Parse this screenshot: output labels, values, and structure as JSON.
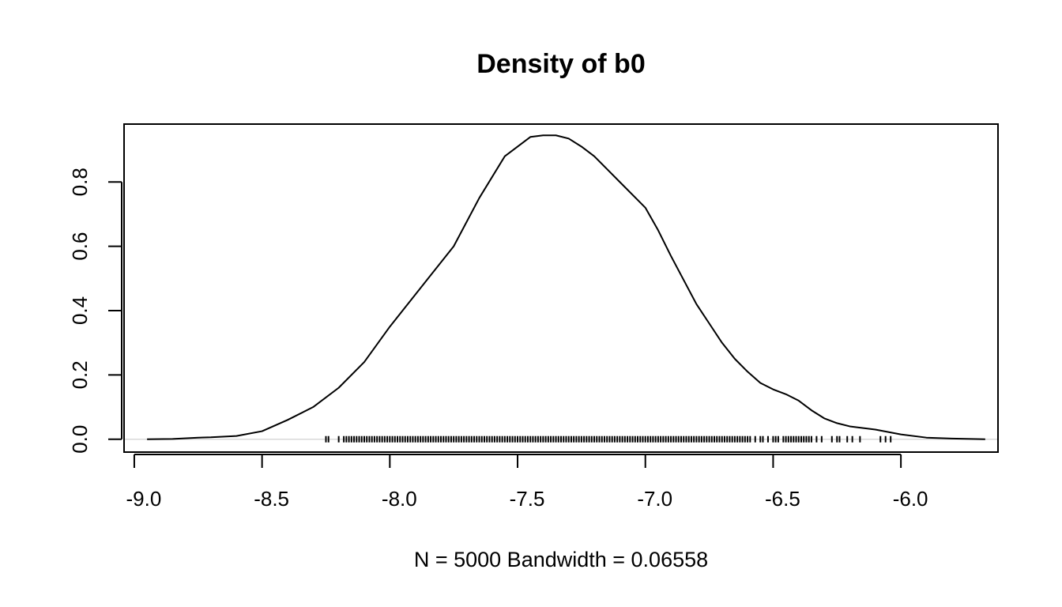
{
  "chart_data": {
    "type": "line",
    "title": "Density of b0",
    "xlabel": "N = 5000   Bandwidth = 0.06558",
    "ylabel": "",
    "xlim": [
      -9.04,
      -5.62
    ],
    "ylim": [
      -0.04,
      0.98
    ],
    "x_ticks": [
      -9.0,
      -8.5,
      -8.0,
      -7.5,
      -7.0,
      -6.5,
      -6.0
    ],
    "x_tick_labels": [
      "-9.0",
      "-8.5",
      "-8.0",
      "-7.5",
      "-7.0",
      "-6.5",
      "-6.0"
    ],
    "y_ticks": [
      0.0,
      0.2,
      0.4,
      0.6,
      0.8
    ],
    "y_tick_labels": [
      "0.0",
      "0.2",
      "0.4",
      "0.6",
      "0.8"
    ],
    "grid": false,
    "baseline": 0.0,
    "series": [
      {
        "x": [
          -8.95,
          -8.85,
          -8.75,
          -8.7,
          -8.6,
          -8.5,
          -8.4,
          -8.3,
          -8.2,
          -8.1,
          -8.0,
          -7.9,
          -7.85,
          -7.75,
          -7.65,
          -7.55,
          -7.45,
          -7.4,
          -7.35,
          -7.3,
          -7.25,
          -7.2,
          -7.15,
          -7.1,
          -7.0,
          -6.95,
          -6.9,
          -6.8,
          -6.75,
          -6.7,
          -6.65,
          -6.6,
          -6.55,
          -6.5,
          -6.45,
          -6.4,
          -6.35,
          -6.3,
          -6.25,
          -6.2,
          -6.1,
          -6.0,
          -5.9,
          -5.8,
          -5.67
        ],
        "y": [
          0.0,
          0.001,
          0.005,
          0.006,
          0.01,
          0.025,
          0.06,
          0.1,
          0.16,
          0.24,
          0.35,
          0.45,
          0.5,
          0.6,
          0.75,
          0.88,
          0.94,
          0.945,
          0.945,
          0.935,
          0.91,
          0.88,
          0.84,
          0.8,
          0.72,
          0.65,
          0.57,
          0.42,
          0.36,
          0.3,
          0.25,
          0.21,
          0.175,
          0.155,
          0.14,
          0.12,
          0.09,
          0.065,
          0.05,
          0.04,
          0.03,
          0.015,
          0.005,
          0.002,
          0.0
        ]
      }
    ],
    "rug": [
      -8.25,
      -8.24,
      -8.2,
      -8.18,
      -8.17,
      -8.16,
      -8.15,
      -8.14,
      -8.13,
      -8.12,
      -8.11,
      -8.1,
      -8.09,
      -8.08,
      -8.07,
      -8.06,
      -8.05,
      -8.04,
      -8.03,
      -8.02,
      -8.01,
      -8.0,
      -7.99,
      -7.98,
      -7.97,
      -7.96,
      -7.95,
      -7.94,
      -7.93,
      -7.92,
      -7.91,
      -7.9,
      -7.89,
      -7.88,
      -7.87,
      -7.86,
      -7.85,
      -7.84,
      -7.83,
      -7.82,
      -7.81,
      -7.8,
      -7.79,
      -7.78,
      -7.77,
      -7.76,
      -7.75,
      -7.74,
      -7.73,
      -7.72,
      -7.71,
      -7.7,
      -7.69,
      -7.68,
      -7.67,
      -7.66,
      -7.65,
      -7.64,
      -7.63,
      -7.62,
      -7.61,
      -7.6,
      -7.59,
      -7.58,
      -7.57,
      -7.56,
      -7.55,
      -7.54,
      -7.53,
      -7.52,
      -7.51,
      -7.5,
      -7.49,
      -7.48,
      -7.47,
      -7.46,
      -7.45,
      -7.44,
      -7.43,
      -7.42,
      -7.41,
      -7.4,
      -7.39,
      -7.38,
      -7.37,
      -7.36,
      -7.35,
      -7.34,
      -7.33,
      -7.32,
      -7.31,
      -7.3,
      -7.29,
      -7.28,
      -7.27,
      -7.26,
      -7.25,
      -7.24,
      -7.23,
      -7.22,
      -7.21,
      -7.2,
      -7.19,
      -7.18,
      -7.17,
      -7.16,
      -7.15,
      -7.14,
      -7.13,
      -7.12,
      -7.11,
      -7.1,
      -7.09,
      -7.08,
      -7.07,
      -7.06,
      -7.05,
      -7.04,
      -7.03,
      -7.02,
      -7.01,
      -7.0,
      -6.99,
      -6.98,
      -6.97,
      -6.96,
      -6.95,
      -6.94,
      -6.93,
      -6.92,
      -6.91,
      -6.9,
      -6.89,
      -6.88,
      -6.87,
      -6.86,
      -6.85,
      -6.84,
      -6.83,
      -6.82,
      -6.81,
      -6.8,
      -6.79,
      -6.78,
      -6.77,
      -6.76,
      -6.75,
      -6.74,
      -6.73,
      -6.72,
      -6.71,
      -6.7,
      -6.69,
      -6.68,
      -6.67,
      -6.66,
      -6.65,
      -6.64,
      -6.63,
      -6.62,
      -6.61,
      -6.6,
      -6.59,
      -6.57,
      -6.55,
      -6.54,
      -6.52,
      -6.5,
      -6.49,
      -6.48,
      -6.46,
      -6.45,
      -6.44,
      -6.43,
      -6.42,
      -6.41,
      -6.4,
      -6.39,
      -6.38,
      -6.37,
      -6.36,
      -6.35,
      -6.33,
      -6.31,
      -6.27,
      -6.25,
      -6.24,
      -6.21,
      -6.19,
      -6.16,
      -6.08,
      -6.06,
      -6.04
    ]
  }
}
